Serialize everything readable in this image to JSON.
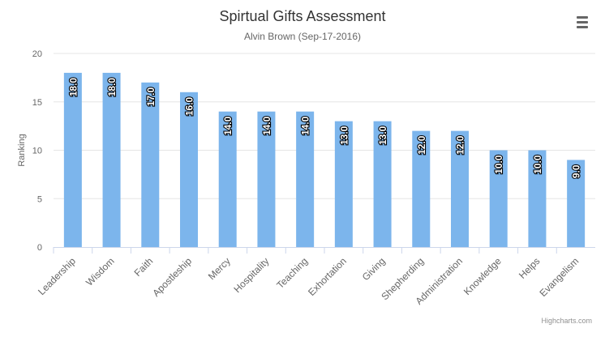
{
  "chart_data": {
    "type": "bar",
    "title": "Spirtual Gifts Assessment",
    "subtitle": "Alvin Brown (Sep-17-2016)",
    "ylabel": "Ranking",
    "xlabel": "",
    "ylim": [
      0,
      20
    ],
    "yticks": [
      0,
      5,
      10,
      15,
      20
    ],
    "grid": true,
    "legend": "none",
    "bar_color": "#7cb5ec",
    "data_label_format": "one decimal, rotated",
    "categories": [
      "Leadership",
      "Wisdom",
      "Faith",
      "Apostleship",
      "Mercy",
      "Hospitality",
      "Teaching",
      "Exhortation",
      "Giving",
      "Shepherding",
      "Administration",
      "Knowledge",
      "Helps",
      "Evangelism"
    ],
    "values": [
      18,
      18,
      17,
      16,
      14,
      14,
      14,
      13,
      13,
      12,
      12,
      10,
      10,
      9
    ]
  },
  "ui": {
    "menu_icon": "hamburger-menu-icon",
    "credits": "Highcharts.com"
  }
}
